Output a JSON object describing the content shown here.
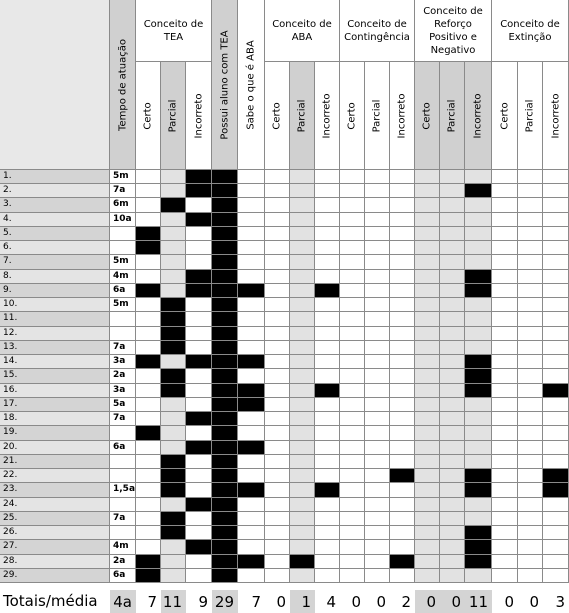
{
  "table": {
    "head": [
      {
        "label": "Tempo de atuação"
      },
      {
        "group": "Conceito de TEA",
        "subs": [
          "Certo",
          "Parcial",
          "Incorreto"
        ]
      },
      {
        "label": "Possui aluno com TEA"
      },
      {
        "label": "Sabe o que é ABA"
      },
      {
        "group": "Conceito de ABA",
        "subs": [
          "Certo",
          "Parcial",
          "Incorreto"
        ]
      },
      {
        "group": "Conceito de Contingência",
        "subs": [
          "Certo",
          "Parcial",
          "Incorreto"
        ]
      },
      {
        "group": "Conceito de Reforço Positivo e Negativo",
        "subs": [
          "Certo",
          "Parcial",
          "Incorreto"
        ]
      },
      {
        "group": "Conceito de Extinção",
        "subs": [
          "Certo",
          "Parcial",
          "Incorreto"
        ]
      }
    ],
    "rows": [
      {
        "label": "1.",
        "tempo": "5m"
      },
      {
        "label": "2.",
        "tempo": "7a"
      },
      {
        "label": "3.",
        "tempo": "6m"
      },
      {
        "label": "4.",
        "tempo": "10a"
      },
      {
        "label": "5."
      },
      {
        "label": "6."
      },
      {
        "label": "7.",
        "tempo": "5m"
      },
      {
        "label": "8.",
        "tempo": "4m"
      },
      {
        "label": "9.",
        "tempo": "6a"
      },
      {
        "label": "10.",
        "tempo": "5m"
      },
      {
        "label": "11."
      },
      {
        "label": "12."
      },
      {
        "label": "13.",
        "tempo": "7a"
      },
      {
        "label": "14.",
        "tempo": "3a"
      },
      {
        "label": "15.",
        "tempo": "2a"
      },
      {
        "label": "16.",
        "tempo": "3a"
      },
      {
        "label": "17.",
        "tempo": "5a"
      },
      {
        "label": "18.",
        "tempo": "7a"
      },
      {
        "label": "19."
      },
      {
        "label": "20.",
        "tempo": "6a"
      },
      {
        "label": "21."
      },
      {
        "label": "22."
      },
      {
        "label": "23.",
        "tempo": "1,5a"
      },
      {
        "label": "24."
      },
      {
        "label": "25.",
        "tempo": "7a"
      },
      {
        "label": "26."
      },
      {
        "label": "27.",
        "tempo": "4m"
      },
      {
        "label": "28.",
        "tempo": "2a"
      },
      {
        "label": "29.",
        "tempo": "6a"
      }
    ],
    "totals": {
      "label": "Totais/média",
      "tempo": "4a",
      "values": [
        7,
        11,
        9,
        29,
        7,
        0,
        1,
        4,
        0,
        0,
        2,
        0,
        0,
        11,
        0,
        0,
        3
      ]
    }
  }
}
